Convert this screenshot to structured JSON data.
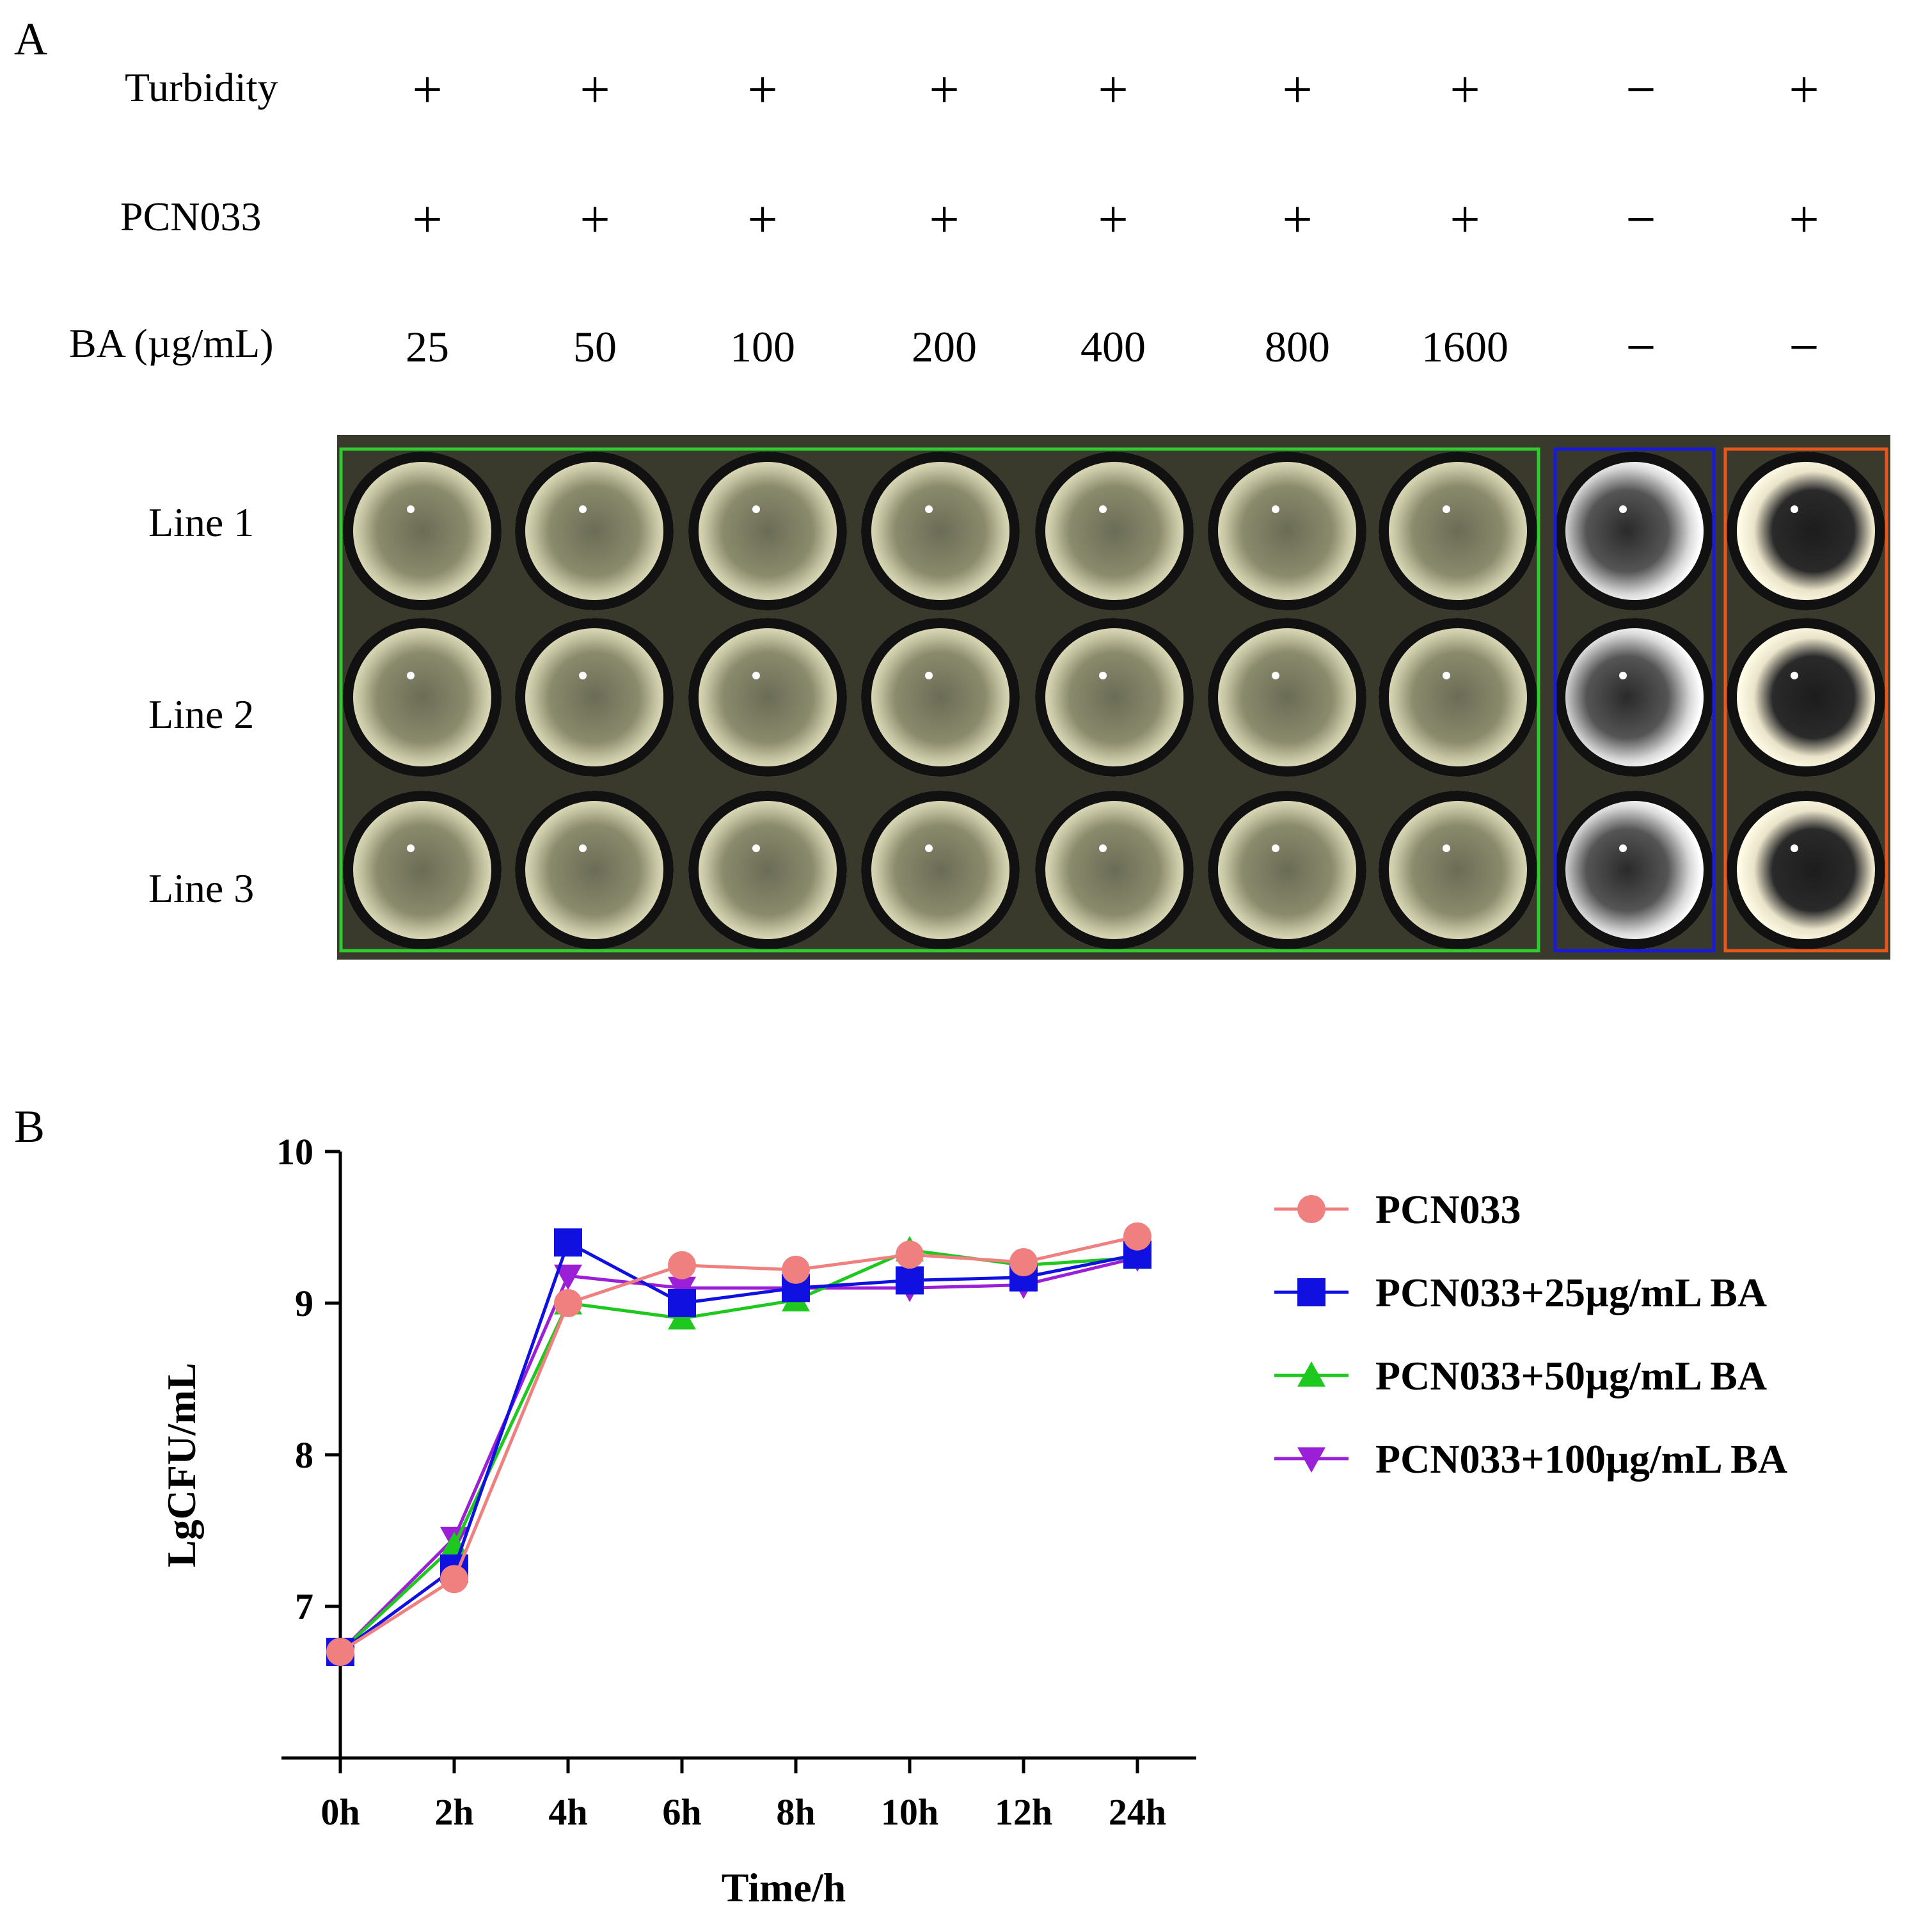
{
  "panel_a": {
    "label": "A",
    "rows": {
      "turbidity": "Turbidity",
      "pcn033": "PCN033",
      "ba": "BA (µg/mL)"
    },
    "columns": [
      {
        "turbidity": "+",
        "pcn033": "+",
        "ba": "25"
      },
      {
        "turbidity": "+",
        "pcn033": "+",
        "ba": "50"
      },
      {
        "turbidity": "+",
        "pcn033": "+",
        "ba": "100"
      },
      {
        "turbidity": "+",
        "pcn033": "+",
        "ba": "200"
      },
      {
        "turbidity": "+",
        "pcn033": "+",
        "ba": "400"
      },
      {
        "turbidity": "+",
        "pcn033": "+",
        "ba": "800"
      },
      {
        "turbidity": "+",
        "pcn033": "+",
        "ba": "1600"
      },
      {
        "turbidity": "−",
        "pcn033": "−",
        "ba": "−"
      },
      {
        "turbidity": "+",
        "pcn033": "+",
        "ba": "−"
      }
    ],
    "lines": [
      "Line 1",
      "Line 2",
      "Line 3"
    ],
    "colors": {
      "green_box": "#2ecc2e",
      "blue_box": "#1a1adc",
      "orange_box": "#e8561e"
    }
  },
  "chart_data": {
    "panel_label": "B",
    "type": "line",
    "categories": [
      "0h",
      "2h",
      "4h",
      "6h",
      "8h",
      "10h",
      "12h",
      "24h"
    ],
    "xlabel": "Time/h",
    "ylabel": "LgCFU/mL",
    "ylim": [
      6,
      10
    ],
    "yticks": [
      "7",
      "8",
      "9",
      "10"
    ],
    "legend_position": "right",
    "series": [
      {
        "name": "PCN033",
        "marker": "circle",
        "color": "#f08080",
        "values": [
          6.7,
          7.18,
          9.0,
          9.25,
          9.22,
          9.32,
          9.27,
          9.44
        ]
      },
      {
        "name": "PCN033+25µg/mL BA",
        "marker": "square",
        "color": "#1010e0",
        "values": [
          6.7,
          7.25,
          9.4,
          9.0,
          9.1,
          9.15,
          9.17,
          9.32
        ]
      },
      {
        "name": "PCN033+50µg/mL BA",
        "marker": "triangle-up",
        "color": "#1ec81e",
        "values": [
          6.7,
          7.4,
          9.0,
          8.9,
          9.02,
          9.35,
          9.25,
          9.3
        ]
      },
      {
        "name": "PCN033+100µg/mL BA",
        "marker": "triangle-down",
        "color": "#9b1fd6",
        "values": [
          6.7,
          7.45,
          9.18,
          9.1,
          9.1,
          9.1,
          9.12,
          9.3
        ]
      }
    ]
  }
}
